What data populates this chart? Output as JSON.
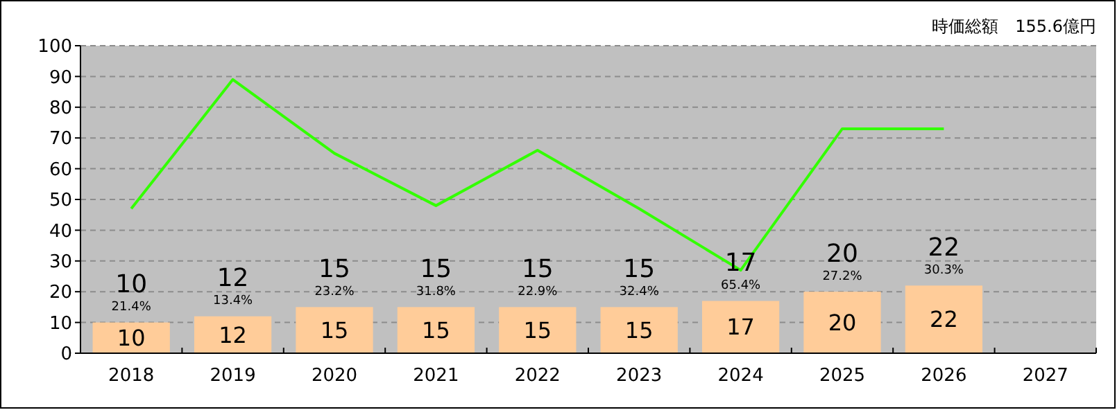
{
  "chart_data": {
    "type": "bar",
    "title": "時価総額　155.6億円",
    "categories": [
      "2018",
      "2019",
      "2020",
      "2021",
      "2022",
      "2023",
      "2024",
      "2025",
      "2026",
      "2027"
    ],
    "series": [
      {
        "color": "#ffcc99",
        "values": [
          10,
          12,
          15,
          15,
          15,
          15,
          17,
          20,
          22,
          null
        ],
        "value_labels": [
          "10",
          "12",
          "15",
          "15",
          "15",
          "15",
          "17",
          "20",
          "22",
          null
        ]
      },
      {
        "type": "line",
        "color": "#33ff00",
        "values": [
          47,
          89,
          65,
          48,
          66,
          47,
          27,
          73,
          73,
          null
        ]
      }
    ],
    "ylim": [
      0,
      100
    ],
    "yticks": [
      0,
      10,
      20,
      30,
      40,
      50,
      60,
      70,
      80,
      90,
      100
    ],
    "grid": "y",
    "annotations": [
      "10",
      "21.4%",
      "12",
      "13.4%",
      "15",
      "23.2%",
      "15",
      "31.8%",
      "15",
      "22.9%",
      "15",
      "32.4%",
      "17",
      "65.4%",
      "20",
      "27.2%",
      "22",
      "30.3%"
    ]
  }
}
